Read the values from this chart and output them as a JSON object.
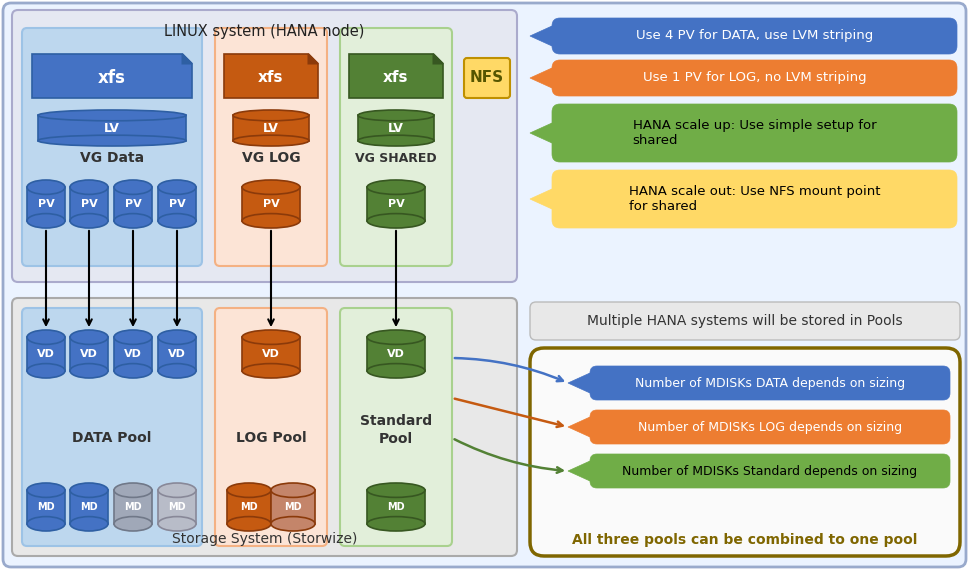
{
  "title": "LINUX system (HANA node)",
  "storage_title": "Storage System (Storwize)",
  "colors": {
    "data_blue": "#4472C4",
    "data_blue_light": "#9DC3E6",
    "data_blue_bg": "#BDD7EE",
    "data_blue_dark": "#2E5FA3",
    "log_orange": "#C55A11",
    "log_orange_light": "#F4B183",
    "log_orange_bg": "#FCE4D6",
    "log_orange_dark": "#8B3A0A",
    "shared_green": "#538135",
    "shared_green_light": "#A9D18E",
    "shared_green_bg": "#E2EFDA",
    "shared_green_dark": "#375721",
    "nfs_yellow": "#FFD966",
    "nfs_yellow_dark": "#BF9000",
    "pools_border": "#7F6600",
    "outer_bg": "#DDEEFF",
    "linux_bg": "#E5E8F0",
    "storage_bg": "#E8E8E8",
    "md_gray": "#A0A8B8",
    "md_gray2": "#B8BCC8",
    "log_md_light": "#C4856A"
  },
  "callouts_top": [
    {
      "text": "Use 4 PV for DATA, use LVM striping",
      "color": "#4472C4",
      "text_color": "#FFFFFF"
    },
    {
      "text": "Use 1 PV for LOG, no LVM striping",
      "color": "#ED7D31",
      "text_color": "#FFFFFF"
    },
    {
      "text": "HANA scale up: Use simple setup for\nshared",
      "color": "#70AD47",
      "text_color": "#000000"
    },
    {
      "text": "HANA scale out: Use NFS mount point\nfor shared",
      "color": "#FFD966",
      "text_color": "#000000"
    }
  ],
  "callouts_bottom": [
    {
      "text": "Number of MDISKs DATA depends on sizing",
      "color": "#4472C4",
      "text_color": "#FFFFFF"
    },
    {
      "text": "Number of MDISKs LOG depends on sizing",
      "color": "#ED7D31",
      "text_color": "#FFFFFF"
    },
    {
      "text": "Number of MDISKs Standard depends on sizing",
      "color": "#70AD47",
      "text_color": "#000000"
    }
  ],
  "pools_note": "All three pools can be combined to one pool",
  "multi_note": "Multiple HANA systems will be stored in Pools"
}
